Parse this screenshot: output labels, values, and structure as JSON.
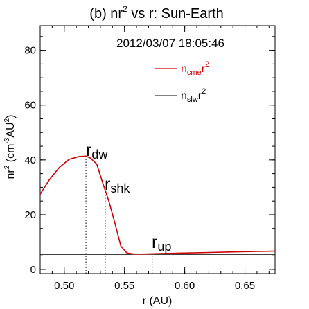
{
  "chart_data": {
    "type": "line",
    "title": {
      "pre": "(b) nr",
      "sup": "2",
      "post": " vs r: Sun-Earth"
    },
    "timestamp": "2012/03/07 18:05:46",
    "xlabel": "r (AU)",
    "ylabel": {
      "a": "nr",
      "a_sup": "2",
      "b": " (cm",
      "b_sup": "-3",
      "c": "AU",
      "c_sup": "2",
      "d": ")"
    },
    "xlim": [
      0.48,
      0.675
    ],
    "ylim": [
      -1.5,
      89
    ],
    "x_ticks": [
      0.5,
      0.55,
      0.6,
      0.65
    ],
    "x_tick_labels": [
      "0.50",
      "0.55",
      "0.60",
      "0.65"
    ],
    "y_ticks": [
      0,
      20,
      40,
      60,
      80
    ],
    "y_tick_labels": [
      "0",
      "20",
      "40",
      "60",
      "80"
    ],
    "legend": {
      "placement": "top-right",
      "entries": [
        {
          "base": "n",
          "sub": "cme",
          "tail": "r",
          "sup": "2",
          "color": "#cc0000"
        },
        {
          "base": "n",
          "sub": "slw",
          "tail": "r",
          "sup": "2",
          "color": "#000000"
        }
      ]
    },
    "series": [
      {
        "name": "ncme r2",
        "color": "#cc0000",
        "x": [
          0.48,
          0.488,
          0.496,
          0.504,
          0.512,
          0.518,
          0.522,
          0.527,
          0.532,
          0.537,
          0.542,
          0.547,
          0.552,
          0.557,
          0.562,
          0.58,
          0.6,
          0.62,
          0.64,
          0.66,
          0.675
        ],
        "y": [
          27.5,
          33,
          37.3,
          40.2,
          41.2,
          41.4,
          40.6,
          38.5,
          31.5,
          25,
          17,
          8.5,
          6.0,
          5.7,
          5.6,
          5.8,
          6.0,
          6.2,
          6.4,
          6.6,
          6.7
        ]
      },
      {
        "name": "nslw r2",
        "color": "#000000",
        "x": [
          0.48,
          0.675
        ],
        "y": [
          5.5,
          5.5
        ]
      }
    ],
    "markers": [
      {
        "x": 0.518,
        "y_top": 41.4,
        "label": "r",
        "sub": "dw"
      },
      {
        "x": 0.534,
        "y_top": 30,
        "label": "r",
        "sub": "shk"
      },
      {
        "x": 0.573,
        "y_top": 5.8,
        "label": "r",
        "sub": "up"
      }
    ]
  }
}
